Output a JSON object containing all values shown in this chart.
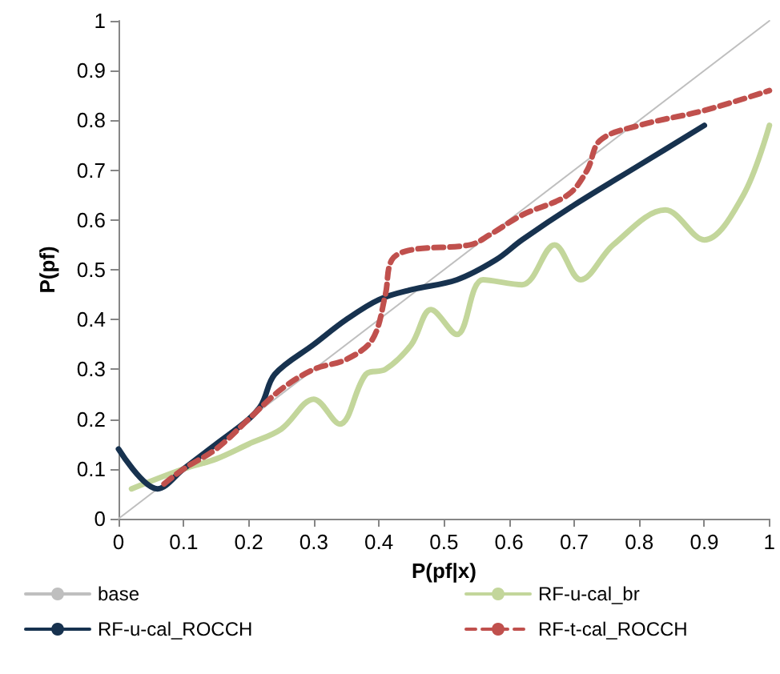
{
  "chart_data": {
    "type": "line",
    "xlabel": "P(pf|x)",
    "ylabel": "P(pf)",
    "xlim": [
      0,
      1
    ],
    "xticks": [
      0,
      0.1,
      0.2,
      0.3,
      0.4,
      0.5,
      0.6,
      0.7,
      0.8,
      0.9,
      1
    ],
    "ylim": [
      0,
      1
    ],
    "yticks": [
      0,
      0.1,
      0.2,
      0.3,
      0.4,
      0.5,
      0.6,
      0.7,
      0.8,
      0.9,
      1
    ],
    "grid": false,
    "legend": "bottom",
    "marker": "none",
    "series": [
      {
        "name": "base",
        "color": "#bfbfbf",
        "x": [
          0,
          1
        ],
        "values": [
          0,
          1
        ]
      },
      {
        "name": "RF-u-cal_br",
        "color": "#c3d69b",
        "x": [
          0.02,
          0.1,
          0.15,
          0.2,
          0.25,
          0.3,
          0.34,
          0.38,
          0.41,
          0.45,
          0.48,
          0.52,
          0.56,
          0.62,
          0.67,
          0.71,
          0.76,
          0.84,
          0.9,
          0.96,
          1.0
        ],
        "values": [
          0.06,
          0.1,
          0.12,
          0.15,
          0.18,
          0.24,
          0.19,
          0.29,
          0.3,
          0.35,
          0.42,
          0.37,
          0.48,
          0.47,
          0.55,
          0.48,
          0.55,
          0.62,
          0.56,
          0.65,
          0.79
        ]
      },
      {
        "name": "RF-u-cal_ROCCH",
        "color": "#17324f",
        "x": [
          0,
          0.06,
          0.1,
          0.15,
          0.2,
          0.22,
          0.24,
          0.3,
          0.35,
          0.4,
          0.45,
          0.52,
          0.58,
          0.62,
          0.7,
          0.8,
          0.9
        ],
        "values": [
          0.14,
          0.06,
          0.1,
          0.15,
          0.2,
          0.23,
          0.29,
          0.35,
          0.4,
          0.44,
          0.46,
          0.48,
          0.52,
          0.56,
          0.63,
          0.71,
          0.79
        ]
      },
      {
        "name": "RF-t-cal_ROCCH",
        "color": "#c0504d",
        "line_style": "dashed",
        "x": [
          0.07,
          0.1,
          0.15,
          0.2,
          0.25,
          0.3,
          0.35,
          0.39,
          0.41,
          0.42,
          0.45,
          0.54,
          0.57,
          0.62,
          0.69,
          0.72,
          0.74,
          0.8,
          0.9,
          1.0
        ],
        "values": [
          0.07,
          0.1,
          0.14,
          0.2,
          0.26,
          0.3,
          0.32,
          0.36,
          0.45,
          0.52,
          0.54,
          0.55,
          0.57,
          0.61,
          0.65,
          0.7,
          0.76,
          0.79,
          0.82,
          0.86
        ]
      }
    ]
  }
}
